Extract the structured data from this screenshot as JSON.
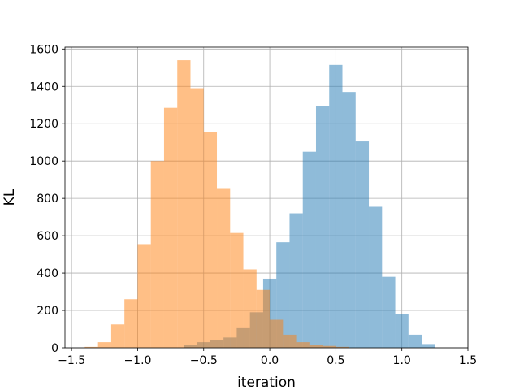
{
  "chart_data": {
    "type": "histogram",
    "title": "",
    "xlabel": "iteration",
    "ylabel": "KL",
    "xlim": [
      -1.55,
      1.5
    ],
    "ylim": [
      0,
      1610
    ],
    "xticks": [
      -1.5,
      -1.0,
      -0.5,
      0.0,
      0.5,
      1.0,
      1.5
    ],
    "xtick_labels": [
      "−1.5",
      "−1.0",
      "−0.5",
      "0.0",
      "0.5",
      "1.0",
      "1.5"
    ],
    "yticks": [
      0,
      200,
      400,
      600,
      800,
      1000,
      1200,
      1400,
      1600
    ],
    "ytick_labels": [
      "0",
      "200",
      "400",
      "600",
      "800",
      "1000",
      "1200",
      "1400",
      "1600"
    ],
    "grid": true,
    "bin_width": 0.1,
    "series": [
      {
        "color": "#1f77b4",
        "opacity": 0.5,
        "bin_starts": [
          -0.95,
          -0.85,
          -0.75,
          -0.65,
          -0.55,
          -0.45,
          -0.35,
          -0.25,
          -0.15,
          -0.05,
          0.05,
          0.15,
          0.25,
          0.35,
          0.45,
          0.55,
          0.65,
          0.75,
          0.85,
          0.95,
          1.05,
          1.15
        ],
        "values": [
          0,
          0,
          0,
          15,
          30,
          40,
          55,
          105,
          190,
          370,
          565,
          720,
          1050,
          1295,
          1515,
          1370,
          1105,
          755,
          380,
          180,
          70,
          20
        ]
      },
      {
        "color": "#ff7f0e",
        "opacity": 0.5,
        "bin_starts": [
          -1.4,
          -1.3,
          -1.2,
          -1.1,
          -1.0,
          -0.9,
          -0.8,
          -0.7,
          -0.6,
          -0.5,
          -0.4,
          -0.3,
          -0.2,
          -0.1,
          0.0,
          0.1,
          0.2,
          0.3,
          0.4,
          0.5
        ],
        "values": [
          5,
          30,
          125,
          260,
          555,
          1000,
          1285,
          1540,
          1390,
          1155,
          855,
          615,
          420,
          310,
          150,
          70,
          30,
          15,
          10,
          5
        ]
      }
    ]
  }
}
